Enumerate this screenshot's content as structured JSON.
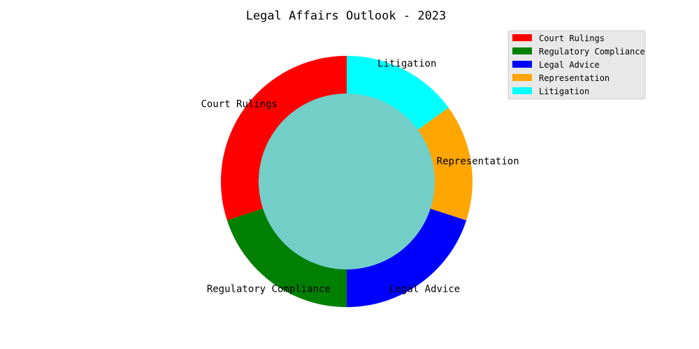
{
  "chart_data": {
    "type": "pie",
    "title": "Legal Affairs Outlook - 2023",
    "categories": [
      "Court Rulings",
      "Regulatory Compliance",
      "Legal Advice",
      "Representation",
      "Litigation"
    ],
    "values": [
      30,
      20,
      20,
      15,
      15
    ],
    "colors": [
      "#ff0000",
      "#008000",
      "#0000ff",
      "#ffa500",
      "#00ffff"
    ],
    "center_color": "#73cec8",
    "donut": true,
    "legend_position": "top-right",
    "legend": [
      "Court Rulings",
      "Regulatory Compliance",
      "Legal Advice",
      "Representation",
      "Litigation"
    ]
  }
}
